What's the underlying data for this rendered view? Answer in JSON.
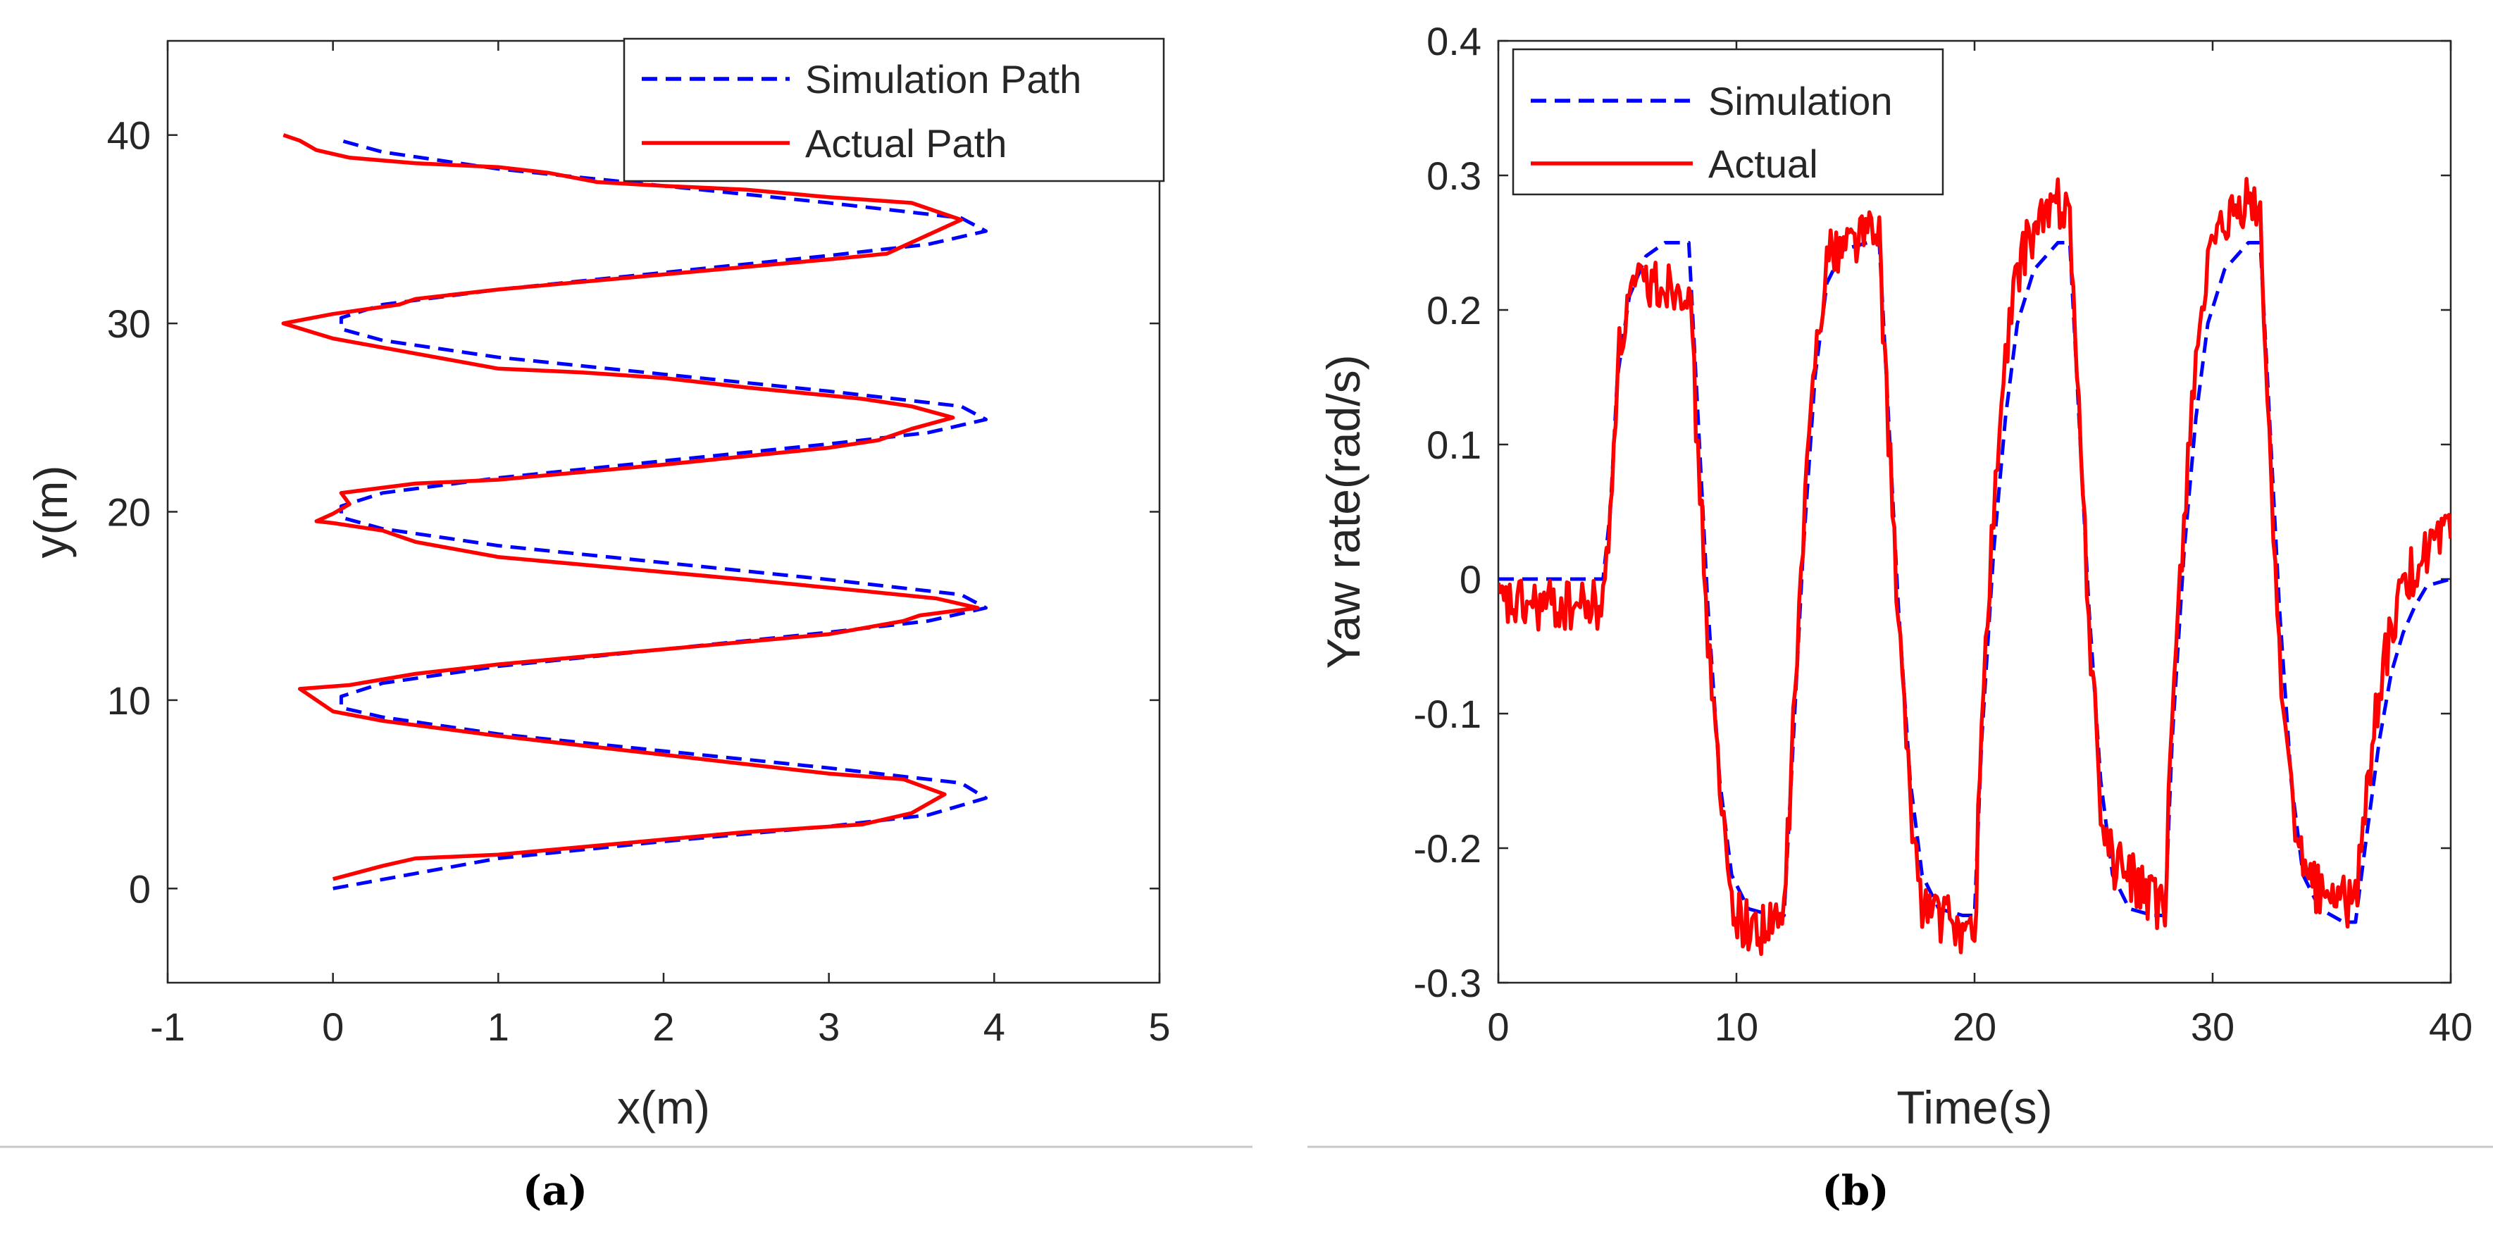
{
  "colors": {
    "simulation": "#0000ff",
    "actual": "#ff0000",
    "axis": "#262626",
    "separator": "#c8c8c8"
  },
  "chart_data": [
    {
      "id": "a",
      "caption": "(a)",
      "type": "line",
      "title": "",
      "xlabel": "x(m)",
      "ylabel": "y(m)",
      "xlim": [
        -1,
        5
      ],
      "ylim": [
        -5,
        45
      ],
      "xticks": [
        "-1",
        "0",
        "1",
        "2",
        "3",
        "4",
        "5"
      ],
      "yticks": [
        "0",
        "10",
        "20",
        "30",
        "40"
      ],
      "legend": {
        "placement": "top-right"
      },
      "series": [
        {
          "name": "Simulation Path",
          "style": "dashed",
          "color": "#0000ff",
          "points": [
            [
              0,
              0
            ],
            [
              1,
              1.6
            ],
            [
              2,
              2.5
            ],
            [
              3,
              3.3
            ],
            [
              3.6,
              3.9
            ],
            [
              3.95,
              4.8
            ],
            [
              3.8,
              5.6
            ],
            [
              3,
              6.4
            ],
            [
              2,
              7.3
            ],
            [
              1,
              8.2
            ],
            [
              0.3,
              9.1
            ],
            [
              0.05,
              9.6
            ],
            [
              0.05,
              10.2
            ],
            [
              0.3,
              10.9
            ],
            [
              1,
              11.8
            ],
            [
              2,
              12.7
            ],
            [
              3,
              13.6
            ],
            [
              3.6,
              14.2
            ],
            [
              3.95,
              14.9
            ],
            [
              3.8,
              15.6
            ],
            [
              3,
              16.4
            ],
            [
              2,
              17.3
            ],
            [
              1,
              18.2
            ],
            [
              0.3,
              19.1
            ],
            [
              0.05,
              19.7
            ],
            [
              0.05,
              20.3
            ],
            [
              0.3,
              21
            ],
            [
              1,
              21.8
            ],
            [
              2,
              22.7
            ],
            [
              3,
              23.6
            ],
            [
              3.6,
              24.2
            ],
            [
              3.95,
              24.9
            ],
            [
              3.8,
              25.6
            ],
            [
              3,
              26.4
            ],
            [
              2,
              27.3
            ],
            [
              1,
              28.2
            ],
            [
              0.3,
              29.1
            ],
            [
              0.05,
              29.7
            ],
            [
              0.05,
              30.3
            ],
            [
              0.3,
              31
            ],
            [
              1,
              31.8
            ],
            [
              2,
              32.7
            ],
            [
              3,
              33.6
            ],
            [
              3.6,
              34.2
            ],
            [
              3.95,
              34.9
            ],
            [
              3.8,
              35.6
            ],
            [
              3,
              36.4
            ],
            [
              2,
              37.3
            ],
            [
              1,
              38.2
            ],
            [
              0.3,
              39.1
            ],
            [
              0.05,
              39.7
            ]
          ]
        },
        {
          "name": "Actual Path",
          "style": "solid",
          "color": "#ff0000",
          "points": [
            [
              0,
              0.5
            ],
            [
              0.3,
              1.2
            ],
            [
              0.5,
              1.6
            ],
            [
              1,
              1.8
            ],
            [
              1.5,
              2.2
            ],
            [
              2,
              2.6
            ],
            [
              2.5,
              3
            ],
            [
              3.2,
              3.4
            ],
            [
              3.5,
              4
            ],
            [
              3.7,
              5
            ],
            [
              3.45,
              5.8
            ],
            [
              3,
              6.1
            ],
            [
              2,
              7.1
            ],
            [
              1,
              8.1
            ],
            [
              0.3,
              8.9
            ],
            [
              0,
              9.4
            ],
            [
              -0.1,
              10
            ],
            [
              -0.2,
              10.6
            ],
            [
              0.1,
              10.8
            ],
            [
              0.5,
              11.4
            ],
            [
              1,
              11.9
            ],
            [
              1.5,
              12.3
            ],
            [
              2,
              12.7
            ],
            [
              2.5,
              13.1
            ],
            [
              3,
              13.5
            ],
            [
              3.45,
              14.2
            ],
            [
              3.55,
              14.5
            ],
            [
              3.9,
              14.9
            ],
            [
              3.65,
              15.4
            ],
            [
              3.2,
              15.8
            ],
            [
              2.5,
              16.4
            ],
            [
              1.5,
              17.2
            ],
            [
              1,
              17.6
            ],
            [
              0.5,
              18.4
            ],
            [
              0.3,
              19
            ],
            [
              0,
              19.4
            ],
            [
              -0.1,
              19.5
            ],
            [
              0,
              19.9
            ],
            [
              0.1,
              20.4
            ],
            [
              0.05,
              21
            ],
            [
              0.5,
              21.5
            ],
            [
              1,
              21.7
            ],
            [
              2,
              22.5
            ],
            [
              3,
              23.4
            ],
            [
              3.3,
              23.8
            ],
            [
              3.5,
              24.4
            ],
            [
              3.75,
              25
            ],
            [
              3.5,
              25.6
            ],
            [
              3.2,
              26
            ],
            [
              2.5,
              26.6
            ],
            [
              2,
              27.1
            ],
            [
              1.5,
              27.4
            ],
            [
              1,
              27.6
            ],
            [
              0.5,
              28.4
            ],
            [
              0,
              29.2
            ],
            [
              -0.3,
              30
            ],
            [
              0,
              30.5
            ],
            [
              0.4,
              31
            ],
            [
              0.5,
              31.3
            ],
            [
              1,
              31.8
            ],
            [
              1.5,
              32.2
            ],
            [
              2.5,
              33
            ],
            [
              3,
              33.4
            ],
            [
              3.35,
              33.7
            ],
            [
              3.5,
              34.3
            ],
            [
              3.8,
              35.5
            ],
            [
              3.5,
              36.4
            ],
            [
              3,
              36.7
            ],
            [
              2.5,
              37.1
            ],
            [
              2,
              37.3
            ],
            [
              1.6,
              37.5
            ],
            [
              1.3,
              38
            ],
            [
              1,
              38.3
            ],
            [
              0.5,
              38.5
            ],
            [
              0.1,
              38.8
            ],
            [
              -0.1,
              39.2
            ],
            [
              -0.2,
              39.7
            ],
            [
              -0.3,
              40
            ]
          ]
        }
      ]
    },
    {
      "id": "b",
      "caption": "(b)",
      "type": "line",
      "title": "",
      "xlabel": "Time(s)",
      "ylabel": "Yaw rate(rad/s)",
      "xlim": [
        0,
        40
      ],
      "ylim": [
        -0.3,
        0.4
      ],
      "xticks": [
        "0",
        "10",
        "20",
        "30",
        "40"
      ],
      "yticks": [
        "-0.3",
        "-0.2",
        "-0.1",
        "0",
        "0.1",
        "0.2",
        "0.3",
        "0.4"
      ],
      "legend": {
        "placement": "top-left"
      },
      "series": [
        {
          "name": "Simulation",
          "style": "dashed",
          "color": "#0000ff",
          "points": [
            [
              0,
              0
            ],
            [
              4.4,
              0
            ],
            [
              4.7,
              0.05
            ],
            [
              5,
              0.15
            ],
            [
              5.5,
              0.21
            ],
            [
              6.2,
              0.24
            ],
            [
              7,
              0.25
            ],
            [
              8,
              0.25
            ],
            [
              8.3,
              0.15
            ],
            [
              8.8,
              -0.02
            ],
            [
              9.3,
              -0.15
            ],
            [
              9.8,
              -0.22
            ],
            [
              10.5,
              -0.245
            ],
            [
              11.5,
              -0.25
            ],
            [
              12,
              -0.25
            ],
            [
              12.3,
              -0.15
            ],
            [
              12.8,
              0.02
            ],
            [
              13.3,
              0.15
            ],
            [
              13.8,
              0.22
            ],
            [
              14.5,
              0.245
            ],
            [
              15.5,
              0.25
            ],
            [
              16,
              0.25
            ],
            [
              16.3,
              0.15
            ],
            [
              16.8,
              -0.02
            ],
            [
              17.3,
              -0.15
            ],
            [
              17.8,
              -0.22
            ],
            [
              18.5,
              -0.245
            ],
            [
              19.5,
              -0.25
            ],
            [
              20,
              -0.25
            ],
            [
              20.3,
              -0.12
            ],
            [
              20.8,
              0.02
            ],
            [
              21.3,
              0.12
            ],
            [
              21.8,
              0.19
            ],
            [
              22.5,
              0.23
            ],
            [
              23.5,
              0.25
            ],
            [
              24,
              0.25
            ],
            [
              24.3,
              0.15
            ],
            [
              24.8,
              -0.02
            ],
            [
              25.3,
              -0.15
            ],
            [
              25.8,
              -0.22
            ],
            [
              26.5,
              -0.245
            ],
            [
              27.5,
              -0.25
            ],
            [
              28,
              -0.25
            ],
            [
              28.3,
              -0.12
            ],
            [
              28.8,
              0.02
            ],
            [
              29.3,
              0.12
            ],
            [
              29.8,
              0.19
            ],
            [
              30.5,
              0.23
            ],
            [
              31.5,
              0.25
            ],
            [
              32,
              0.25
            ],
            [
              32.3,
              0.15
            ],
            [
              32.8,
              -0.02
            ],
            [
              33.3,
              -0.15
            ],
            [
              33.8,
              -0.22
            ],
            [
              34.5,
              -0.245
            ],
            [
              35.5,
              -0.255
            ],
            [
              36,
              -0.255
            ],
            [
              36.4,
              -0.2
            ],
            [
              37,
              -0.12
            ],
            [
              37.5,
              -0.07
            ],
            [
              38,
              -0.04
            ],
            [
              38.5,
              -0.02
            ],
            [
              39,
              -0.005
            ],
            [
              40,
              0
            ]
          ]
        },
        {
          "name": "Actual",
          "style": "solid",
          "color": "#ff0000",
          "noise_amplitude": 0.02,
          "points": [
            [
              0,
              -0.02
            ],
            [
              4.4,
              -0.02
            ],
            [
              4.7,
              0.05
            ],
            [
              5,
              0.16
            ],
            [
              5.5,
              0.21
            ],
            [
              6.2,
              0.22
            ],
            [
              7,
              0.22
            ],
            [
              8,
              0.22
            ],
            [
              8.3,
              0.12
            ],
            [
              8.8,
              -0.04
            ],
            [
              9.3,
              -0.16
            ],
            [
              9.8,
              -0.24
            ],
            [
              10.5,
              -0.26
            ],
            [
              11.5,
              -0.26
            ],
            [
              12,
              -0.25
            ],
            [
              12.3,
              -0.14
            ],
            [
              12.8,
              0.03
            ],
            [
              13.3,
              0.17
            ],
            [
              13.8,
              0.24
            ],
            [
              14.5,
              0.25
            ],
            [
              15.5,
              0.26
            ],
            [
              16,
              0.25
            ],
            [
              16.3,
              0.14
            ],
            [
              16.8,
              -0.03
            ],
            [
              17.3,
              -0.17
            ],
            [
              17.8,
              -0.24
            ],
            [
              18.5,
              -0.25
            ],
            [
              19.5,
              -0.26
            ],
            [
              20,
              -0.27
            ],
            [
              20.3,
              -0.1
            ],
            [
              20.8,
              0.05
            ],
            [
              21.3,
              0.16
            ],
            [
              21.8,
              0.23
            ],
            [
              22.5,
              0.26
            ],
            [
              23.5,
              0.28
            ],
            [
              24,
              0.28
            ],
            [
              24.3,
              0.15
            ],
            [
              24.8,
              -0.03
            ],
            [
              25.3,
              -0.17
            ],
            [
              25.8,
              -0.21
            ],
            [
              26.5,
              -0.22
            ],
            [
              27.5,
              -0.24
            ],
            [
              28,
              -0.25
            ],
            [
              28.3,
              -0.1
            ],
            [
              28.8,
              0.05
            ],
            [
              29.3,
              0.17
            ],
            [
              29.8,
              0.23
            ],
            [
              30.5,
              0.26
            ],
            [
              31.5,
              0.28
            ],
            [
              32,
              0.27
            ],
            [
              32.3,
              0.13
            ],
            [
              32.8,
              -0.05
            ],
            [
              33.3,
              -0.16
            ],
            [
              33.8,
              -0.22
            ],
            [
              34.5,
              -0.23
            ],
            [
              35.5,
              -0.24
            ],
            [
              36,
              -0.24
            ],
            [
              36.4,
              -0.17
            ],
            [
              37,
              -0.08
            ],
            [
              37.5,
              -0.04
            ],
            [
              38,
              -0.01
            ],
            [
              38.5,
              0.01
            ],
            [
              39,
              0.02
            ],
            [
              40,
              0.03
            ]
          ]
        }
      ]
    }
  ]
}
